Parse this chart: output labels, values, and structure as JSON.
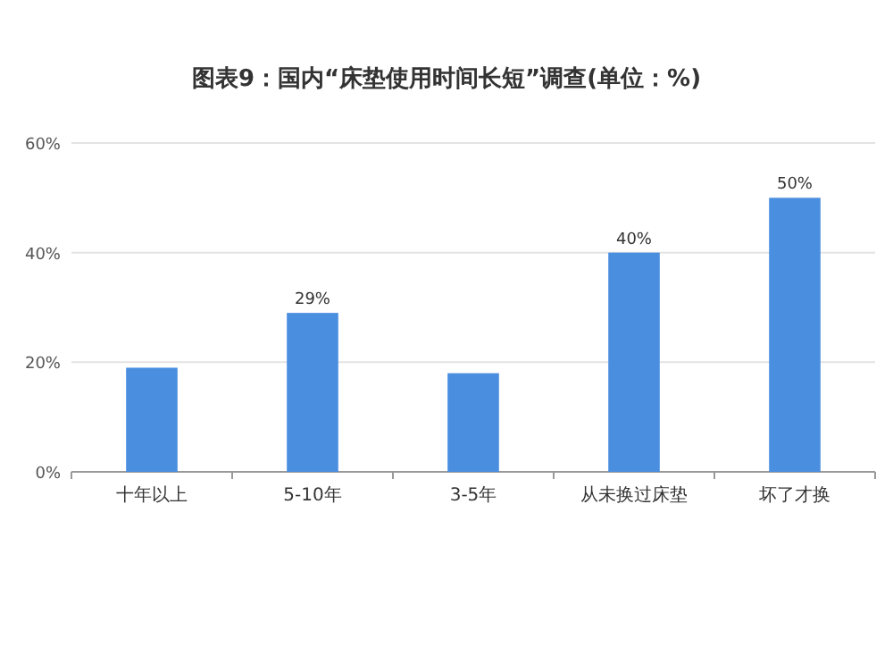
{
  "chart_data": {
    "type": "bar",
    "title": "图表9：国内“床垫使用时间长短”调查(单位：%)",
    "categories": [
      "十年以上",
      "5-10年",
      "3-5年",
      "从未换过床垫",
      "坏了才换"
    ],
    "values": [
      19,
      29,
      18,
      40,
      50
    ],
    "value_labels": [
      null,
      "29%",
      null,
      "40%",
      "50%"
    ],
    "color": "#4a8ee0",
    "ylim": [
      0,
      60
    ],
    "yticks": [
      {
        "value": 0,
        "label": "0%"
      },
      {
        "value": 20,
        "label": "20%"
      },
      {
        "value": 40,
        "label": "40%"
      },
      {
        "value": 60,
        "label": "60%"
      }
    ],
    "grid": "y"
  }
}
